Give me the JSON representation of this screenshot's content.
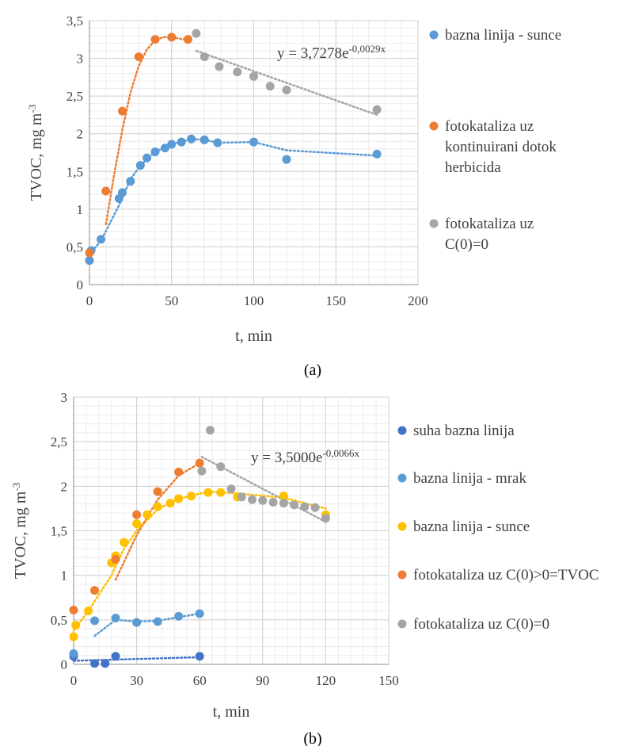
{
  "chart_data": [
    {
      "type": "scatter",
      "caption": "(a)",
      "xlabel": "t, min",
      "ylabel_main": "TVOC, mg m",
      "ylabel_sup": "-3",
      "xlim": [
        0,
        200
      ],
      "ylim": [
        0,
        3.5
      ],
      "xticks": [
        0,
        50,
        100,
        150,
        200
      ],
      "yticks": [
        0,
        0.5,
        1,
        1.5,
        2,
        2.5,
        3,
        3.5
      ],
      "ytick_labels": [
        "0",
        "0,5",
        "1",
        "1,5",
        "2",
        "2,5",
        "3",
        "3,5"
      ],
      "grid": true,
      "legend_position": "right",
      "equation": {
        "main": "y = 3,7278e",
        "sup": "-0,0029x"
      },
      "series": [
        {
          "name": "bazna linija - sunce",
          "color": "#5B9BD5",
          "x": [
            0,
            1,
            7,
            18,
            20,
            25,
            31,
            35,
            40,
            46,
            50,
            56,
            62,
            70,
            78,
            100,
            120,
            175
          ],
          "y": [
            0.32,
            0.45,
            0.6,
            1.14,
            1.22,
            1.37,
            1.58,
            1.68,
            1.76,
            1.81,
            1.86,
            1.89,
            1.93,
            1.92,
            1.88,
            1.89,
            1.66,
            1.73
          ],
          "trend": {
            "x": [
              0,
              7,
              18,
              25,
              31,
              40,
              50,
              62,
              70,
              78,
              100,
              120,
              175
            ],
            "y": [
              0.4,
              0.58,
              1.05,
              1.4,
              1.58,
              1.76,
              1.86,
              1.93,
              1.92,
              1.88,
              1.89,
              1.78,
              1.71
            ]
          }
        },
        {
          "name": "fotokataliza uz kontinuirani dotok herbicida",
          "name_lines": [
            "fotokataliza uz",
            "kontinuirani dotok",
            "herbicida"
          ],
          "color": "#ED7D31",
          "x": [
            0,
            10,
            20,
            30,
            40,
            50,
            60
          ],
          "y": [
            0.42,
            1.24,
            2.3,
            3.02,
            3.25,
            3.28,
            3.25
          ],
          "trend": {
            "x": [
              10,
              15,
              20,
              25,
              30,
              35,
              40,
              45,
              50,
              55,
              60
            ],
            "y": [
              0.8,
              1.45,
              2.05,
              2.55,
              2.9,
              3.12,
              3.24,
              3.28,
              3.28,
              3.26,
              3.24
            ]
          }
        },
        {
          "name": "fotokataliza uz C(0)=0",
          "name_lines": [
            "fotokataliza uz",
            "C(0)=0"
          ],
          "color": "#A5A5A5",
          "x": [
            65,
            70,
            79,
            90,
            100,
            110,
            120,
            175
          ],
          "y": [
            3.33,
            3.02,
            2.89,
            2.82,
            2.76,
            2.63,
            2.58,
            2.32
          ],
          "trend": {
            "x": [
              65,
              175
            ],
            "y": [
              3.1,
              2.25
            ]
          }
        }
      ]
    },
    {
      "type": "scatter",
      "caption": "(b)",
      "xlabel": "t, min",
      "ylabel_main": "TVOC, mg m",
      "ylabel_sup": "-3",
      "xlim": [
        0,
        150
      ],
      "ylim": [
        0,
        3
      ],
      "xticks": [
        0,
        30,
        60,
        90,
        120,
        150
      ],
      "yticks": [
        0,
        0.5,
        1,
        1.5,
        2,
        2.5,
        3
      ],
      "ytick_labels": [
        "0",
        "0,5",
        "1",
        "1,5",
        "2",
        "2,5",
        "3"
      ],
      "grid": true,
      "legend_position": "right",
      "equation": {
        "main": "y = 3,5000e",
        "sup": "-0,0066x"
      },
      "series": [
        {
          "name": "suha bazna linija",
          "color": "#4472C4",
          "x": [
            0,
            10,
            15,
            20,
            60
          ],
          "y": [
            0.09,
            0.01,
            0.01,
            0.09,
            0.09
          ],
          "trend": {
            "x": [
              0,
              60
            ],
            "y": [
              0.04,
              0.08
            ]
          }
        },
        {
          "name": "bazna linija - mrak",
          "color": "#5B9BD5",
          "x": [
            0,
            10,
            20,
            30,
            40,
            50,
            60
          ],
          "y": [
            0.12,
            0.49,
            0.52,
            0.47,
            0.48,
            0.54,
            0.57
          ],
          "trend": {
            "x": [
              10,
              20,
              30,
              40,
              50,
              60
            ],
            "y": [
              0.32,
              0.5,
              0.48,
              0.49,
              0.53,
              0.57
            ]
          }
        },
        {
          "name": "bazna linija - sunce",
          "color": "#FFC000",
          "x": [
            0,
            1,
            7,
            18,
            20,
            24,
            30,
            35,
            40,
            46,
            50,
            56,
            64,
            70,
            78,
            100,
            120
          ],
          "y": [
            0.31,
            0.44,
            0.6,
            1.14,
            1.22,
            1.37,
            1.58,
            1.68,
            1.77,
            1.81,
            1.86,
            1.89,
            1.93,
            1.93,
            1.88,
            1.89,
            1.68
          ],
          "trend": {
            "x": [
              0,
              7,
              18,
              24,
              30,
              40,
              50,
              64,
              78,
              100,
              120
            ],
            "y": [
              0.38,
              0.6,
              1.0,
              1.3,
              1.5,
              1.74,
              1.86,
              1.94,
              1.92,
              1.87,
              1.75
            ]
          }
        },
        {
          "name": "fotokataliza uz C(0)>0=TVOC",
          "color": "#ED7D31",
          "x": [
            0,
            10,
            20,
            30,
            40,
            50,
            60
          ],
          "y": [
            0.61,
            0.83,
            1.18,
            1.68,
            1.94,
            2.16,
            2.26
          ],
          "trend": {
            "x": [
              20,
              30,
              40,
              50,
              60
            ],
            "y": [
              0.95,
              1.45,
              1.85,
              2.12,
              2.26
            ]
          }
        },
        {
          "name": "fotokataliza uz C(0)=0",
          "color": "#A5A5A5",
          "x": [
            61,
            65,
            70,
            75,
            80,
            85,
            90,
            95,
            100,
            105,
            110,
            115,
            120
          ],
          "y": [
            2.17,
            2.63,
            2.22,
            1.97,
            1.88,
            1.85,
            1.84,
            1.82,
            1.81,
            1.79,
            1.77,
            1.76,
            1.64
          ],
          "trend": {
            "x": [
              61,
              120
            ],
            "y": [
              2.33,
              1.6
            ]
          }
        }
      ]
    }
  ]
}
